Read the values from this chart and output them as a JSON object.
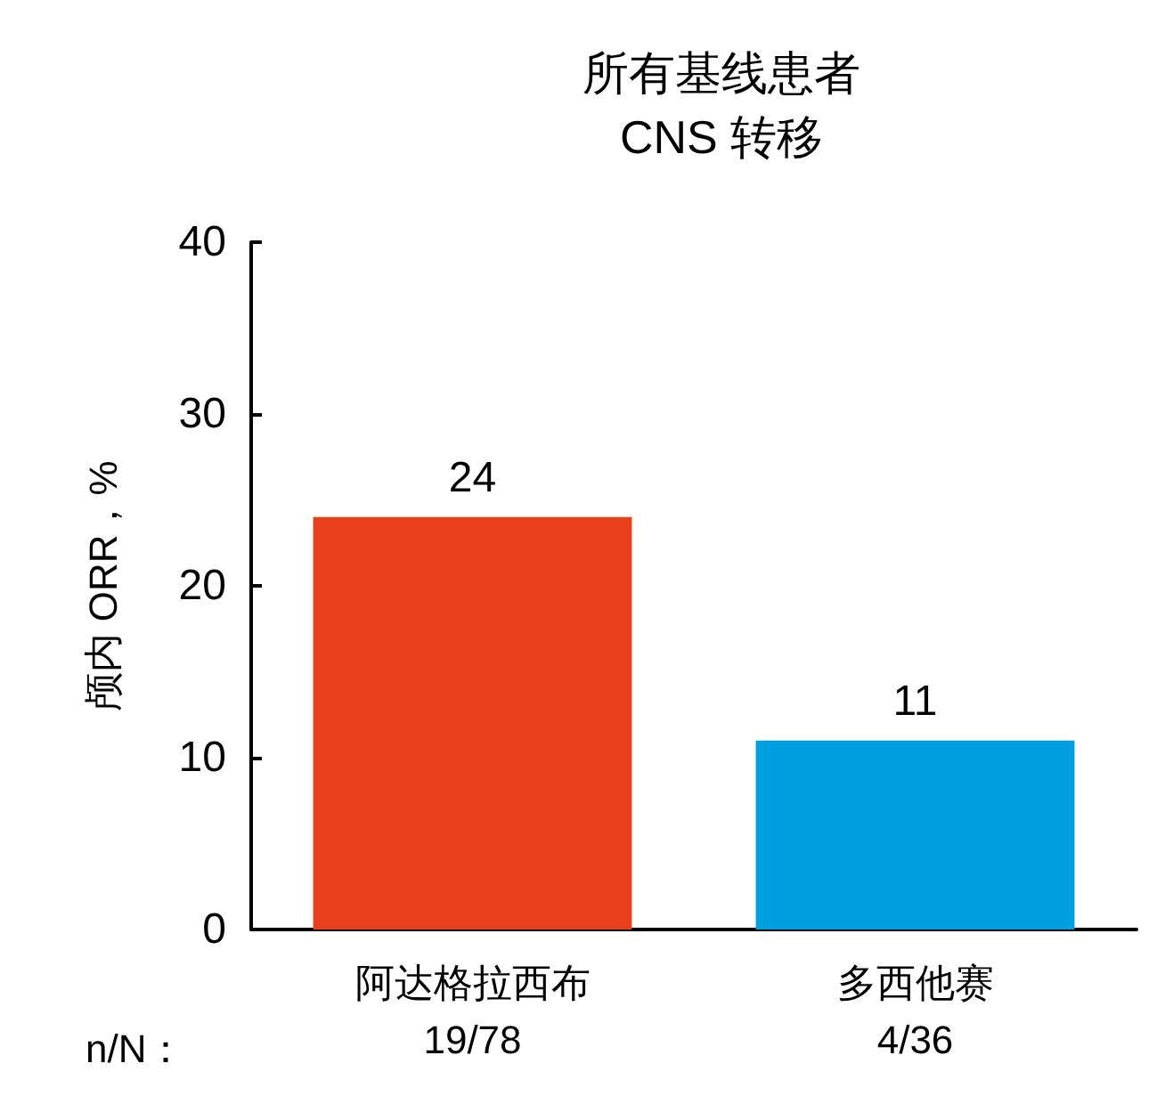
{
  "chart_data": {
    "type": "bar",
    "title": "所有基线患者\nCNS 转移",
    "ylabel": "颅内 ORR，%",
    "categories": [
      "阿达格拉西布\n19/78",
      "多西他赛\n4/36"
    ],
    "values": [
      24,
      11
    ],
    "colors": [
      "#e8401a",
      "#009fe0"
    ],
    "ylim": [
      0,
      40
    ],
    "yticks": [
      0,
      10,
      20,
      30,
      40
    ],
    "grid": false,
    "data_labels": true,
    "annotations": [
      "n/N："
    ]
  }
}
